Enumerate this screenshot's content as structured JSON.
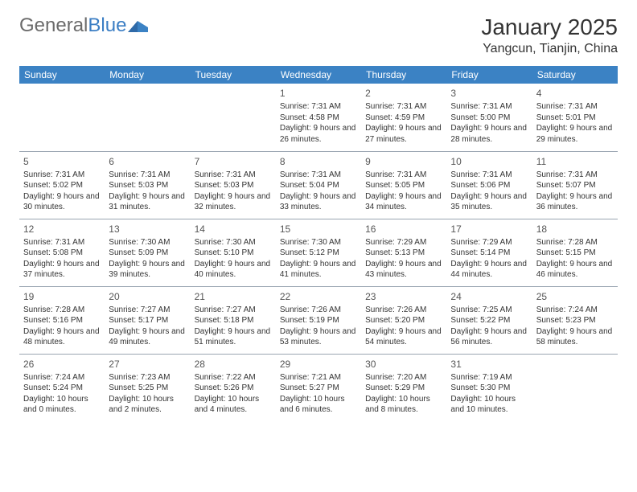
{
  "logo": {
    "word1": "General",
    "word2": "Blue"
  },
  "header": {
    "title": "January 2025",
    "location": "Yangcun, Tianjin, China"
  },
  "colors": {
    "accent": "#3b82c4",
    "logo_gray": "#6b6b6b",
    "logo_blue": "#3b7ec4",
    "text": "#333333",
    "divider": "#9aa5b1",
    "background": "#ffffff"
  },
  "day_headers": [
    "Sunday",
    "Monday",
    "Tuesday",
    "Wednesday",
    "Thursday",
    "Friday",
    "Saturday"
  ],
  "weeks": [
    [
      null,
      null,
      null,
      {
        "n": "1",
        "sr": "Sunrise: 7:31 AM",
        "ss": "Sunset: 4:58 PM",
        "dl": "Daylight: 9 hours and 26 minutes."
      },
      {
        "n": "2",
        "sr": "Sunrise: 7:31 AM",
        "ss": "Sunset: 4:59 PM",
        "dl": "Daylight: 9 hours and 27 minutes."
      },
      {
        "n": "3",
        "sr": "Sunrise: 7:31 AM",
        "ss": "Sunset: 5:00 PM",
        "dl": "Daylight: 9 hours and 28 minutes."
      },
      {
        "n": "4",
        "sr": "Sunrise: 7:31 AM",
        "ss": "Sunset: 5:01 PM",
        "dl": "Daylight: 9 hours and 29 minutes."
      }
    ],
    [
      {
        "n": "5",
        "sr": "Sunrise: 7:31 AM",
        "ss": "Sunset: 5:02 PM",
        "dl": "Daylight: 9 hours and 30 minutes."
      },
      {
        "n": "6",
        "sr": "Sunrise: 7:31 AM",
        "ss": "Sunset: 5:03 PM",
        "dl": "Daylight: 9 hours and 31 minutes."
      },
      {
        "n": "7",
        "sr": "Sunrise: 7:31 AM",
        "ss": "Sunset: 5:03 PM",
        "dl": "Daylight: 9 hours and 32 minutes."
      },
      {
        "n": "8",
        "sr": "Sunrise: 7:31 AM",
        "ss": "Sunset: 5:04 PM",
        "dl": "Daylight: 9 hours and 33 minutes."
      },
      {
        "n": "9",
        "sr": "Sunrise: 7:31 AM",
        "ss": "Sunset: 5:05 PM",
        "dl": "Daylight: 9 hours and 34 minutes."
      },
      {
        "n": "10",
        "sr": "Sunrise: 7:31 AM",
        "ss": "Sunset: 5:06 PM",
        "dl": "Daylight: 9 hours and 35 minutes."
      },
      {
        "n": "11",
        "sr": "Sunrise: 7:31 AM",
        "ss": "Sunset: 5:07 PM",
        "dl": "Daylight: 9 hours and 36 minutes."
      }
    ],
    [
      {
        "n": "12",
        "sr": "Sunrise: 7:31 AM",
        "ss": "Sunset: 5:08 PM",
        "dl": "Daylight: 9 hours and 37 minutes."
      },
      {
        "n": "13",
        "sr": "Sunrise: 7:30 AM",
        "ss": "Sunset: 5:09 PM",
        "dl": "Daylight: 9 hours and 39 minutes."
      },
      {
        "n": "14",
        "sr": "Sunrise: 7:30 AM",
        "ss": "Sunset: 5:10 PM",
        "dl": "Daylight: 9 hours and 40 minutes."
      },
      {
        "n": "15",
        "sr": "Sunrise: 7:30 AM",
        "ss": "Sunset: 5:12 PM",
        "dl": "Daylight: 9 hours and 41 minutes."
      },
      {
        "n": "16",
        "sr": "Sunrise: 7:29 AM",
        "ss": "Sunset: 5:13 PM",
        "dl": "Daylight: 9 hours and 43 minutes."
      },
      {
        "n": "17",
        "sr": "Sunrise: 7:29 AM",
        "ss": "Sunset: 5:14 PM",
        "dl": "Daylight: 9 hours and 44 minutes."
      },
      {
        "n": "18",
        "sr": "Sunrise: 7:28 AM",
        "ss": "Sunset: 5:15 PM",
        "dl": "Daylight: 9 hours and 46 minutes."
      }
    ],
    [
      {
        "n": "19",
        "sr": "Sunrise: 7:28 AM",
        "ss": "Sunset: 5:16 PM",
        "dl": "Daylight: 9 hours and 48 minutes."
      },
      {
        "n": "20",
        "sr": "Sunrise: 7:27 AM",
        "ss": "Sunset: 5:17 PM",
        "dl": "Daylight: 9 hours and 49 minutes."
      },
      {
        "n": "21",
        "sr": "Sunrise: 7:27 AM",
        "ss": "Sunset: 5:18 PM",
        "dl": "Daylight: 9 hours and 51 minutes."
      },
      {
        "n": "22",
        "sr": "Sunrise: 7:26 AM",
        "ss": "Sunset: 5:19 PM",
        "dl": "Daylight: 9 hours and 53 minutes."
      },
      {
        "n": "23",
        "sr": "Sunrise: 7:26 AM",
        "ss": "Sunset: 5:20 PM",
        "dl": "Daylight: 9 hours and 54 minutes."
      },
      {
        "n": "24",
        "sr": "Sunrise: 7:25 AM",
        "ss": "Sunset: 5:22 PM",
        "dl": "Daylight: 9 hours and 56 minutes."
      },
      {
        "n": "25",
        "sr": "Sunrise: 7:24 AM",
        "ss": "Sunset: 5:23 PM",
        "dl": "Daylight: 9 hours and 58 minutes."
      }
    ],
    [
      {
        "n": "26",
        "sr": "Sunrise: 7:24 AM",
        "ss": "Sunset: 5:24 PM",
        "dl": "Daylight: 10 hours and 0 minutes."
      },
      {
        "n": "27",
        "sr": "Sunrise: 7:23 AM",
        "ss": "Sunset: 5:25 PM",
        "dl": "Daylight: 10 hours and 2 minutes."
      },
      {
        "n": "28",
        "sr": "Sunrise: 7:22 AM",
        "ss": "Sunset: 5:26 PM",
        "dl": "Daylight: 10 hours and 4 minutes."
      },
      {
        "n": "29",
        "sr": "Sunrise: 7:21 AM",
        "ss": "Sunset: 5:27 PM",
        "dl": "Daylight: 10 hours and 6 minutes."
      },
      {
        "n": "30",
        "sr": "Sunrise: 7:20 AM",
        "ss": "Sunset: 5:29 PM",
        "dl": "Daylight: 10 hours and 8 minutes."
      },
      {
        "n": "31",
        "sr": "Sunrise: 7:19 AM",
        "ss": "Sunset: 5:30 PM",
        "dl": "Daylight: 10 hours and 10 minutes."
      },
      null
    ]
  ]
}
